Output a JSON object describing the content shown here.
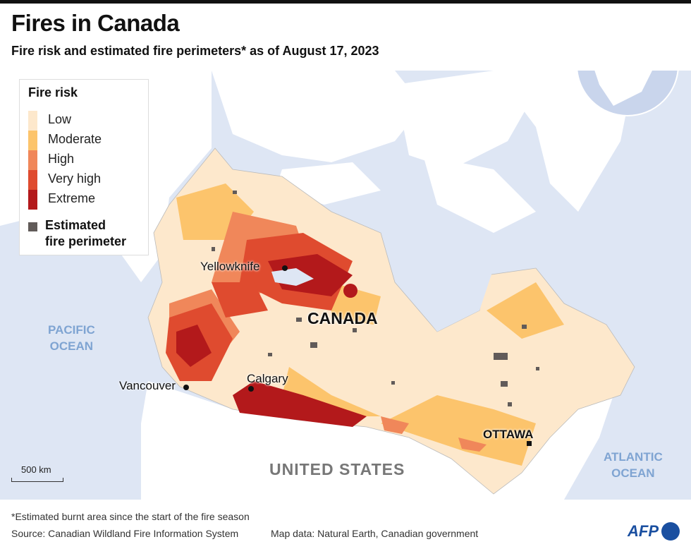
{
  "header": {
    "title": "Fires in Canada",
    "subtitle": "Fire risk and estimated fire perimeters* as of August  17, 2023"
  },
  "legend": {
    "title": "Fire risk",
    "levels": [
      {
        "label": "Low",
        "color": "#fde8cc"
      },
      {
        "label": "Moderate",
        "color": "#fcc46c"
      },
      {
        "label": "High",
        "color": "#f0875a"
      },
      {
        "label": "Very high",
        "color": "#df4b2f"
      },
      {
        "label": "Extreme",
        "color": "#b3191b"
      }
    ],
    "perimeter_label_1": "Estimated",
    "perimeter_label_2": "fire perimeter",
    "perimeter_color": "#615b59"
  },
  "map": {
    "oceans": {
      "pacific_1": "PACIFIC",
      "pacific_2": "OCEAN",
      "atlantic_1": "ATLANTIC",
      "atlantic_2": "OCEAN"
    },
    "countries": {
      "canada": "CANADA",
      "us": "UNITED STATES"
    },
    "cities": {
      "yellowknife": "Yellowknife",
      "vancouver": "Vancouver",
      "calgary": "Calgary",
      "ottawa": "OTTAWA"
    },
    "scale": "500 km",
    "ocean_color": "#dee6f4"
  },
  "footer": {
    "note": "*Estimated burnt area since the start of the fire season",
    "source": "Source: Canadian Wildland Fire Information System",
    "mapdata": "Map data: Natural Earth, Canadian government",
    "logo": "AFP"
  }
}
